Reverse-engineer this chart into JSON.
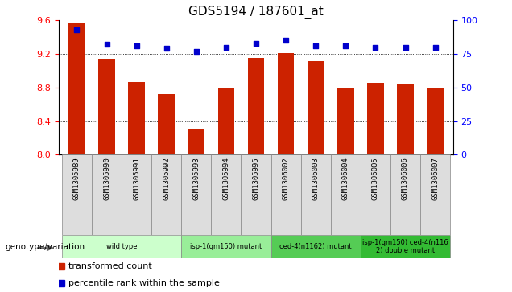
{
  "title": "GDS5194 / 187601_at",
  "samples": [
    "GSM1305989",
    "GSM1305990",
    "GSM1305991",
    "GSM1305992",
    "GSM1305993",
    "GSM1305994",
    "GSM1305995",
    "GSM1306002",
    "GSM1306003",
    "GSM1306004",
    "GSM1306005",
    "GSM1306006",
    "GSM1306007"
  ],
  "bar_values": [
    9.57,
    9.14,
    8.87,
    8.72,
    8.31,
    8.79,
    9.15,
    9.21,
    9.12,
    8.8,
    8.86,
    8.84,
    8.8
  ],
  "dot_values": [
    93,
    82,
    81,
    79,
    77,
    80,
    83,
    85,
    81,
    81,
    80,
    80,
    80
  ],
  "ylim_left": [
    8.0,
    9.6
  ],
  "ylim_right": [
    0,
    100
  ],
  "yticks_left": [
    8.0,
    8.4,
    8.8,
    9.2,
    9.6
  ],
  "yticks_right": [
    0,
    25,
    50,
    75,
    100
  ],
  "bar_color": "#cc2200",
  "dot_color": "#0000cc",
  "bar_width": 0.55,
  "background_plot": "#ffffff",
  "background_fig": "#ffffff",
  "genotype_groups": [
    {
      "label": "wild type",
      "start": 0,
      "end": 3,
      "color": "#ccffcc"
    },
    {
      "label": "isp-1(qm150) mutant",
      "start": 4,
      "end": 6,
      "color": "#99ee99"
    },
    {
      "label": "ced-4(n1162) mutant",
      "start": 7,
      "end": 9,
      "color": "#55cc55"
    },
    {
      "label": "isp-1(qm150) ced-4(n116\n2) double mutant",
      "start": 10,
      "end": 12,
      "color": "#33bb33"
    }
  ],
  "legend_items": [
    {
      "label": "transformed count",
      "color": "#cc2200"
    },
    {
      "label": "percentile rank within the sample",
      "color": "#0000cc"
    }
  ],
  "genotype_label": "genotype/variation",
  "title_fontsize": 11,
  "tick_label_bg": "#dddddd"
}
